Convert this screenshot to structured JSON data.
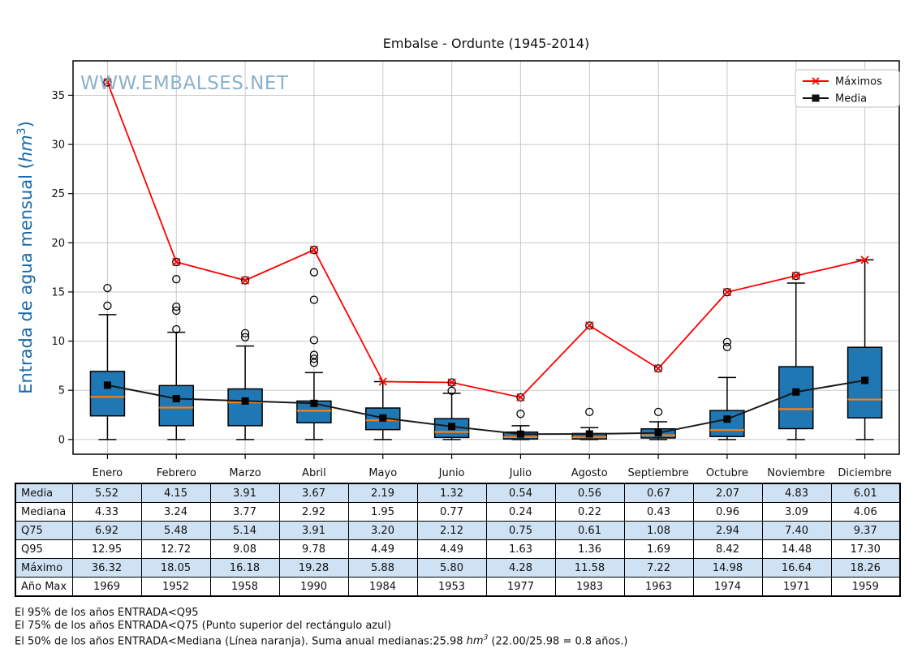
{
  "title": "Embalse - Ordunte (1945-2014)",
  "watermark": "WWW.EMBALSES.NET",
  "ylabel": "Entrada de agua mensual (hm³)",
  "legend": [
    {
      "label": "Máximos",
      "marker": "x-marker",
      "color": "#ff0000"
    },
    {
      "label": "Media",
      "marker": "square-marker",
      "color": "#111111"
    }
  ],
  "colors": {
    "box_fill": "#1f77b4",
    "box_edge": "#000000",
    "median_line": "#ff7f0e",
    "max_line": "#ff0000",
    "mean_line": "#1a1a1a",
    "grid": "#c8c8c8",
    "frame": "#000000",
    "watermark": "#7ea9c8",
    "ylabel_blue": "#1669a8",
    "table_alt_row": "#cfe2f3"
  },
  "chart_data": {
    "type": "box+line",
    "categories": [
      "Enero",
      "Febrero",
      "Marzo",
      "Abril",
      "Mayo",
      "Junio",
      "Julio",
      "Agosto",
      "Septiembre",
      "Octubre",
      "Noviembre",
      "Diciembre"
    ],
    "ylim": [
      -1.5,
      38.5
    ],
    "yticks": [
      0,
      5,
      10,
      15,
      20,
      25,
      30,
      35
    ],
    "grid": true,
    "legend_position": "upper right",
    "series": [
      {
        "name": "Máximos",
        "type": "line",
        "marker": "x",
        "values": [
          36.32,
          18.05,
          16.18,
          19.28,
          5.88,
          5.8,
          4.28,
          11.58,
          7.22,
          14.98,
          16.64,
          18.26
        ]
      },
      {
        "name": "Media",
        "type": "line",
        "marker": "square",
        "values": [
          5.52,
          4.15,
          3.91,
          3.67,
          2.19,
          1.32,
          0.54,
          0.56,
          0.67,
          2.07,
          4.83,
          6.01
        ]
      }
    ],
    "boxes": [
      {
        "month": "Enero",
        "q25": 2.4,
        "median": 4.33,
        "q75": 6.92,
        "whisker_lo": 0,
        "whisker_hi": 12.7,
        "fliers": [
          13.6,
          15.4
        ],
        "max_is_flier": true
      },
      {
        "month": "Febrero",
        "q25": 1.4,
        "median": 3.24,
        "q75": 5.48,
        "whisker_lo": 0,
        "whisker_hi": 10.9,
        "fliers": [
          11.2,
          13.1,
          13.5,
          16.3
        ],
        "max_is_flier": true
      },
      {
        "month": "Marzo",
        "q25": 1.4,
        "median": 3.77,
        "q75": 5.14,
        "whisker_lo": 0,
        "whisker_hi": 9.5,
        "fliers": [
          10.4,
          10.8
        ],
        "max_is_flier": true
      },
      {
        "month": "Abril",
        "q25": 1.7,
        "median": 2.92,
        "q75": 3.91,
        "whisker_lo": 0,
        "whisker_hi": 6.8,
        "fliers": [
          7.8,
          8.2,
          8.6,
          10.1,
          14.2,
          17.0
        ],
        "max_is_flier": true
      },
      {
        "month": "Mayo",
        "q25": 1.0,
        "median": 1.95,
        "q75": 3.2,
        "whisker_lo": 0,
        "whisker_hi": 5.88,
        "fliers": [],
        "max_is_flier": false
      },
      {
        "month": "Junio",
        "q25": 0.2,
        "median": 0.77,
        "q75": 2.12,
        "whisker_lo": 0,
        "whisker_hi": 4.7,
        "fliers": [
          4.95
        ],
        "max_is_flier": true
      },
      {
        "month": "Julio",
        "q25": 0.05,
        "median": 0.24,
        "q75": 0.75,
        "whisker_lo": 0,
        "whisker_hi": 1.4,
        "fliers": [
          2.6
        ],
        "max_is_flier": true
      },
      {
        "month": "Agosto",
        "q25": 0.05,
        "median": 0.22,
        "q75": 0.61,
        "whisker_lo": 0,
        "whisker_hi": 1.2,
        "fliers": [
          2.8
        ],
        "max_is_flier": true
      },
      {
        "month": "Septiembre",
        "q25": 0.15,
        "median": 0.43,
        "q75": 1.08,
        "whisker_lo": 0,
        "whisker_hi": 1.8,
        "fliers": [
          2.8
        ],
        "max_is_flier": true
      },
      {
        "month": "Octubre",
        "q25": 0.3,
        "median": 0.96,
        "q75": 2.94,
        "whisker_lo": 0,
        "whisker_hi": 6.3,
        "fliers": [
          9.4,
          9.9
        ],
        "max_is_flier": true
      },
      {
        "month": "Noviembre",
        "q25": 1.1,
        "median": 3.09,
        "q75": 7.4,
        "whisker_lo": 0,
        "whisker_hi": 15.9,
        "fliers": [],
        "max_is_flier": true
      },
      {
        "month": "Diciembre",
        "q25": 2.2,
        "median": 4.06,
        "q75": 9.37,
        "whisker_lo": 0,
        "whisker_hi": 18.26,
        "fliers": [],
        "max_is_flier": false
      }
    ]
  },
  "table": {
    "row_labels": [
      "Media",
      "Mediana",
      "Q75",
      "Q95",
      "Máximo",
      "Año Max"
    ],
    "rows": [
      [
        "5.52",
        "4.15",
        "3.91",
        "3.67",
        "2.19",
        "1.32",
        "0.54",
        "0.56",
        "0.67",
        "2.07",
        "4.83",
        "6.01"
      ],
      [
        "4.33",
        "3.24",
        "3.77",
        "2.92",
        "1.95",
        "0.77",
        "0.24",
        "0.22",
        "0.43",
        "0.96",
        "3.09",
        "4.06"
      ],
      [
        "6.92",
        "5.48",
        "5.14",
        "3.91",
        "3.20",
        "2.12",
        "0.75",
        "0.61",
        "1.08",
        "2.94",
        "7.40",
        "9.37"
      ],
      [
        "12.95",
        "12.72",
        "9.08",
        "9.78",
        "4.49",
        "4.49",
        "1.63",
        "1.36",
        "1.69",
        "8.42",
        "14.48",
        "17.30"
      ],
      [
        "36.32",
        "18.05",
        "16.18",
        "19.28",
        "5.88",
        "5.80",
        "4.28",
        "11.58",
        "7.22",
        "14.98",
        "16.64",
        "18.26"
      ],
      [
        "1969",
        "1952",
        "1958",
        "1990",
        "1984",
        "1953",
        "1977",
        "1983",
        "1963",
        "1974",
        "1971",
        "1959"
      ]
    ]
  },
  "footnotes": [
    "El 95% de los años ENTRADA<Q95",
    "El 75% de los años ENTRADA<Q75 (Punto superior del rectángulo azul)",
    "El 50% de los años ENTRADA<Mediana (Línea naranja). Suma anual medianas:25.98 hm³ (22.00/25.98 = 0.8 años.)"
  ]
}
